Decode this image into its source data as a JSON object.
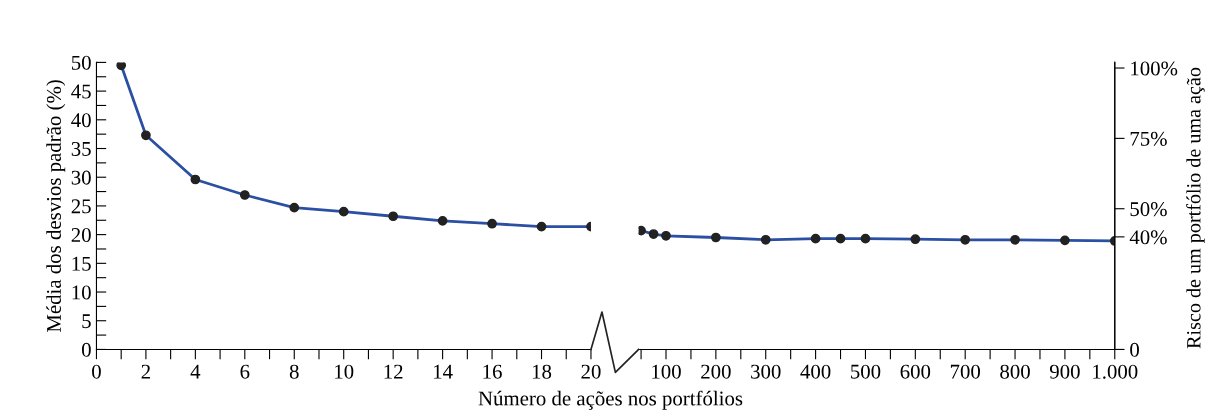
{
  "chart_data": [
    {
      "type": "line",
      "ylabel": "Média dos desvios padrão (%)",
      "xlabel": "Número de ações nos portfólios",
      "x": [
        1,
        2,
        4,
        6,
        8,
        10,
        12,
        14,
        16,
        18,
        20
      ],
      "series": [
        {
          "color": "#2b4fa3",
          "values": [
            49.5,
            37.3,
            29.6,
            26.9,
            24.7,
            24.0,
            23.2,
            22.4,
            21.9,
            21.4,
            21.4
          ]
        }
      ],
      "xlim": [
        0,
        20
      ],
      "ylim": [
        0,
        50
      ],
      "xticks": [
        0,
        {
          "value": 1,
          "label": null
        },
        2,
        {
          "value": 3,
          "label": null
        },
        4,
        {
          "value": 5,
          "label": null
        },
        6,
        {
          "value": 7,
          "label": null
        },
        8,
        {
          "value": 9,
          "label": null
        },
        10,
        {
          "value": 11,
          "label": null
        },
        12,
        {
          "value": 13,
          "label": null
        },
        14,
        {
          "value": 15,
          "label": null
        },
        16,
        {
          "value": 17,
          "label": null
        },
        18,
        {
          "value": 19,
          "label": null
        },
        20
      ],
      "yticks": [
        0,
        {
          "value": 2.5,
          "label": null
        },
        5,
        {
          "value": 7.5,
          "label": null
        },
        10,
        {
          "value": 12.5,
          "label": null
        },
        15,
        {
          "value": 17.5,
          "label": null
        },
        20,
        {
          "value": 22.5,
          "label": null
        },
        25,
        {
          "value": 27.5,
          "label": null
        },
        30,
        {
          "value": 32.5,
          "label": null
        },
        35,
        {
          "value": 37.5,
          "label": null
        },
        40,
        {
          "value": 42.5,
          "label": null
        },
        45,
        {
          "value": 47.5,
          "label": null
        },
        50
      ],
      "marker": "circle",
      "grid": false,
      "legend": false
    },
    {
      "type": "line",
      "y2label": "Risco de um portfólio de uma ação",
      "x": [
        50,
        75,
        100,
        200,
        300,
        400,
        450,
        500,
        600,
        700,
        800,
        900,
        1000
      ],
      "series": [
        {
          "color": "#2b4fa3",
          "values": [
            20.7,
            20.1,
            19.8,
            19.5,
            19.1,
            19.3,
            19.3,
            19.3,
            19.2,
            19.1,
            19.1,
            19.0,
            18.9
          ]
        }
      ],
      "xlim": [
        45,
        1000
      ],
      "ylim": [
        0,
        50
      ],
      "y2lim": [
        0,
        102
      ],
      "xticks": [
        {
          "value": 50,
          "label": null
        },
        100,
        {
          "value": 150,
          "label": null
        },
        200,
        {
          "value": 250,
          "label": null
        },
        300,
        {
          "value": 350,
          "label": null
        },
        400,
        {
          "value": 450,
          "label": null
        },
        500,
        {
          "value": 550,
          "label": null
        },
        600,
        {
          "value": 650,
          "label": null
        },
        700,
        {
          "value": 750,
          "label": null
        },
        800,
        {
          "value": 850,
          "label": null
        },
        900,
        {
          "value": 950,
          "label": null
        },
        {
          "value": 1000,
          "label": "1.000"
        }
      ],
      "y2ticks": [
        {
          "value": 0,
          "label": "0"
        },
        {
          "value": 40,
          "label": "40%"
        },
        {
          "value": 50,
          "label": "50%"
        },
        {
          "value": 75,
          "label": "75%"
        },
        {
          "value": 100,
          "label": "100%"
        }
      ],
      "tick_labels": "x",
      "marker": "circle",
      "grid": false,
      "legend": false
    }
  ]
}
